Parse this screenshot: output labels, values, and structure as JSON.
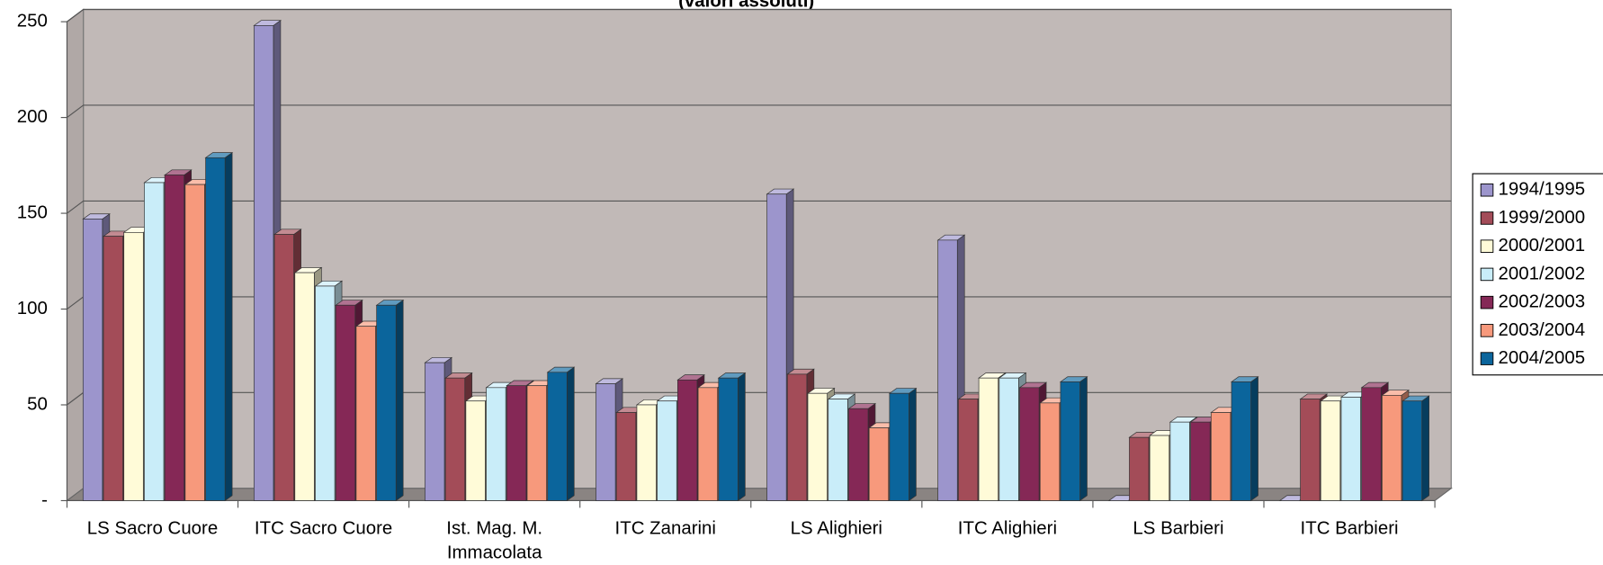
{
  "chart_data": {
    "type": "bar3d",
    "title": "(valori assoluti)",
    "categories": [
      "LS Sacro Cuore",
      "ITC Sacro Cuore",
      "Ist. Mag. M. Immacolata",
      "ITC Zanarini",
      "LS Alighieri",
      "ITC Alighieri",
      "LS Barbieri",
      "ITC Barbieri"
    ],
    "series": [
      {
        "name": "1994/1995",
        "color": "#9c95cc",
        "values": [
          147,
          248,
          72,
          61,
          160,
          136,
          0,
          0
        ]
      },
      {
        "name": "1999/2000",
        "color": "#a34c58",
        "values": [
          138,
          139,
          64,
          46,
          66,
          53,
          33,
          53
        ]
      },
      {
        "name": "2000/2001",
        "color": "#fffbd8",
        "values": [
          140,
          119,
          52,
          50,
          56,
          64,
          34,
          52
        ]
      },
      {
        "name": "2001/2002",
        "color": "#c9edf9",
        "values": [
          166,
          112,
          59,
          52,
          53,
          64,
          41,
          54
        ]
      },
      {
        "name": "2002/2003",
        "color": "#852856",
        "values": [
          170,
          102,
          60,
          63,
          48,
          59,
          41,
          59
        ]
      },
      {
        "name": "2003/2004",
        "color": "#f7997c",
        "values": [
          165,
          91,
          60,
          59,
          38,
          51,
          46,
          55
        ]
      },
      {
        "name": "2004/2005",
        "color": "#0b659c",
        "values": [
          179,
          102,
          67,
          64,
          56,
          62,
          62,
          52
        ]
      }
    ],
    "ylim": [
      0,
      250
    ],
    "yticks": [
      {
        "value": 0,
        "label": "-"
      },
      50,
      100,
      150,
      200,
      250
    ],
    "grid": true,
    "legend": "right"
  }
}
